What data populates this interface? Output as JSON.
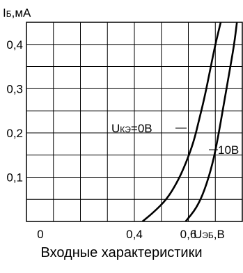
{
  "chart_data": {
    "type": "line",
    "ylabel_main": "I",
    "ylabel_sub": "Б",
    "ylabel_unit": ",мА",
    "xlabel_main": "U",
    "xlabel_sub": "ЭБ",
    "xlabel_unit": ",В",
    "xlim": [
      0,
      0.8
    ],
    "ylim": [
      0,
      0.45
    ],
    "x_ticks": [
      {
        "value": 0,
        "label": "0"
      },
      {
        "value": 0.4,
        "label": "0,4"
      },
      {
        "value": 0.6,
        "label": "0,6"
      }
    ],
    "y_ticks": [
      {
        "value": 0.1,
        "label": "0,1"
      },
      {
        "value": 0.2,
        "label": "0,2"
      },
      {
        "value": 0.3,
        "label": "0,3"
      },
      {
        "value": 0.4,
        "label": "0,4"
      }
    ],
    "grid": true,
    "series": [
      {
        "name_main": "U",
        "name_sub": "КЭ",
        "name_rest": "=0В",
        "points": [
          [
            0.43,
            0.0
          ],
          [
            0.47,
            0.02
          ],
          [
            0.52,
            0.05
          ],
          [
            0.56,
            0.09
          ],
          [
            0.59,
            0.13
          ],
          [
            0.62,
            0.18
          ],
          [
            0.64,
            0.23
          ],
          [
            0.66,
            0.28
          ],
          [
            0.68,
            0.34
          ],
          [
            0.7,
            0.4
          ],
          [
            0.72,
            0.45
          ]
        ]
      },
      {
        "name": "10В",
        "points": [
          [
            0.59,
            0.0
          ],
          [
            0.63,
            0.03
          ],
          [
            0.66,
            0.07
          ],
          [
            0.69,
            0.13
          ],
          [
            0.71,
            0.19
          ],
          [
            0.73,
            0.26
          ],
          [
            0.75,
            0.33
          ],
          [
            0.77,
            0.4
          ],
          [
            0.78,
            0.45
          ]
        ]
      }
    ]
  },
  "caption": "Входные характеристики"
}
